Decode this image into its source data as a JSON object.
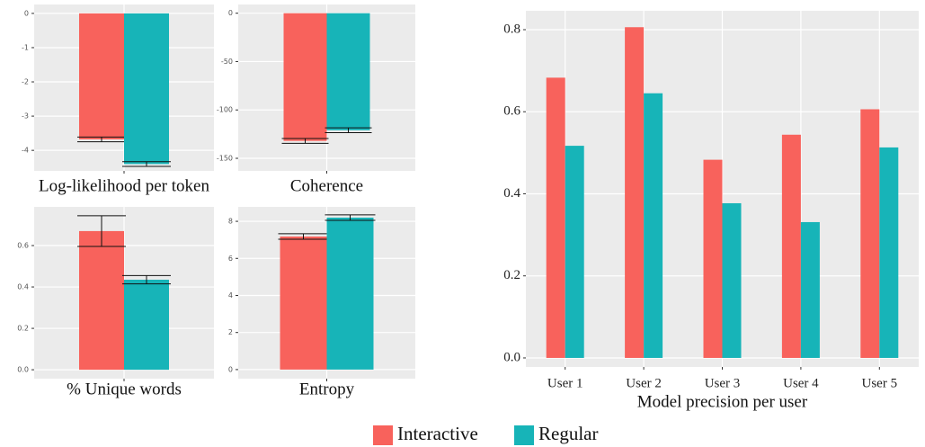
{
  "chart_data": [
    {
      "type": "bar",
      "xlabel": "Log-likelihood per token",
      "ylim": [
        -4.6,
        0.26
      ],
      "yticks": [
        0,
        -1,
        -2,
        -3,
        -4
      ],
      "series": [
        {
          "name": "Interactive",
          "color": "#f8625c",
          "values": [
            -3.68
          ],
          "errors": [
            0.07
          ]
        },
        {
          "name": "Regular",
          "color": "#17b4b8",
          "values": [
            -4.4
          ],
          "errors": [
            0.07
          ]
        }
      ]
    },
    {
      "type": "bar",
      "xlabel": "Coherence",
      "ylim": [
        -163,
        9
      ],
      "yticks": [
        0,
        -50,
        -100,
        -150
      ],
      "series": [
        {
          "name": "Interactive",
          "color": "#f8625c",
          "values": [
            -132
          ],
          "errors": [
            2.5
          ]
        },
        {
          "name": "Regular",
          "color": "#17b4b8",
          "values": [
            -121
          ],
          "errors": [
            2.5
          ]
        }
      ]
    },
    {
      "type": "bar",
      "xlabel": "% Unique words",
      "ylim": [
        -0.043,
        0.787
      ],
      "yticks": [
        {
          "value": 0,
          "label": "0.0"
        },
        0.2,
        0.4,
        0.6
      ],
      "series": [
        {
          "name": "Interactive",
          "color": "#f8625c",
          "values": [
            0.67
          ],
          "errors": [
            0.074
          ]
        },
        {
          "name": "Regular",
          "color": "#17b4b8",
          "values": [
            0.435
          ],
          "errors": [
            0.02
          ]
        }
      ]
    },
    {
      "type": "bar",
      "xlabel": "Entropy",
      "ylim": [
        -0.49,
        8.78
      ],
      "yticks": [
        0,
        2,
        4,
        6,
        8
      ],
      "series": [
        {
          "name": "Interactive",
          "color": "#f8625c",
          "values": [
            7.18
          ],
          "errors": [
            0.15
          ]
        },
        {
          "name": "Regular",
          "color": "#17b4b8",
          "values": [
            8.2
          ],
          "errors": [
            0.15
          ]
        }
      ]
    },
    {
      "type": "bar",
      "xlabel": "Model precision per user",
      "ylim": [
        -0.022,
        0.846
      ],
      "yticks": [
        {
          "value": 0,
          "label": "0.0"
        },
        0.2,
        0.4,
        0.6,
        0.8
      ],
      "categories": [
        "User 1",
        "User 2",
        "User 3",
        "User 4",
        "User 5"
      ],
      "series": [
        {
          "name": "Interactive",
          "color": "#f8625c",
          "values": [
            0.683,
            0.806,
            0.483,
            0.544,
            0.606
          ]
        },
        {
          "name": "Regular",
          "color": "#17b4b8",
          "values": [
            0.517,
            0.645,
            0.377,
            0.331,
            0.513
          ]
        }
      ]
    }
  ]
}
